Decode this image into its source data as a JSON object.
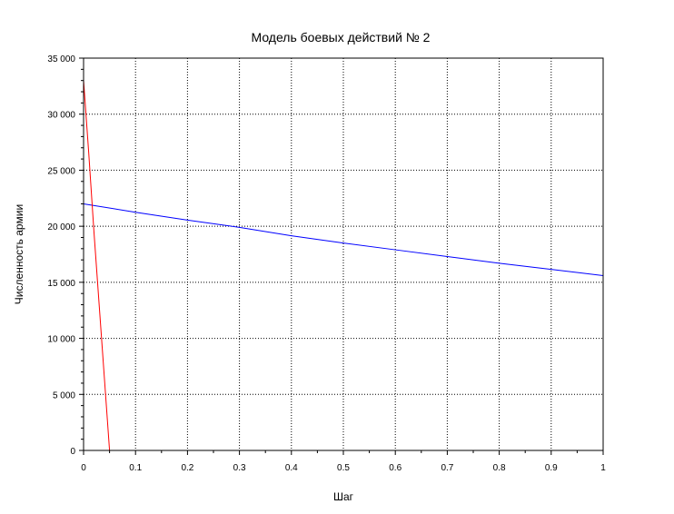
{
  "chart_data": {
    "type": "line",
    "title": "Модель боевых действий № 2",
    "xlabel": "Шаг",
    "ylabel": "Численность армии",
    "xlim": [
      0,
      1
    ],
    "ylim": [
      0,
      35000
    ],
    "grid": true,
    "x_ticks": [
      "0",
      "0.1",
      "0.2",
      "0.3",
      "0.4",
      "0.5",
      "0.6",
      "0.7",
      "0.8",
      "0.9",
      "1"
    ],
    "y_ticks": [
      "0",
      "5 000",
      "10 000",
      "15 000",
      "20 000",
      "25 000",
      "30 000",
      "35 000"
    ],
    "series": [
      {
        "color": "#0000ff",
        "points": [
          [
            0,
            22000
          ],
          [
            0.1,
            21250
          ],
          [
            0.2,
            20550
          ],
          [
            0.3,
            19900
          ],
          [
            0.4,
            19150
          ],
          [
            0.5,
            18500
          ],
          [
            0.6,
            17900
          ],
          [
            0.7,
            17300
          ],
          [
            0.8,
            16700
          ],
          [
            0.9,
            16150
          ],
          [
            1,
            15600
          ]
        ]
      },
      {
        "color": "#ff0000",
        "points": [
          [
            0,
            33000
          ],
          [
            0.01,
            26500
          ],
          [
            0.02,
            19500
          ],
          [
            0.03,
            13000
          ],
          [
            0.04,
            6500
          ],
          [
            0.05,
            0
          ],
          [
            1,
            0
          ]
        ]
      }
    ]
  }
}
